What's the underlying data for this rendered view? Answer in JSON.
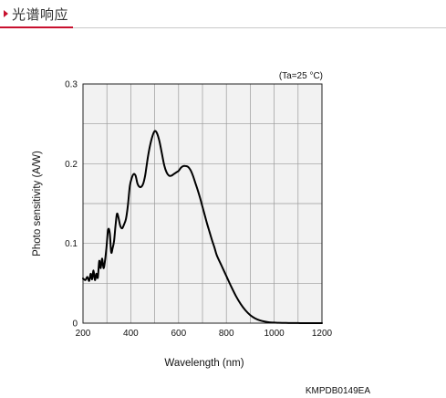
{
  "header": {
    "title": "光谱响应"
  },
  "chart_data": {
    "type": "line",
    "annotation": "(Ta=25 °C)",
    "code": "KMPDB0149EA",
    "xlabel": "Wavelength (nm)",
    "ylabel": "Photo sensitivity (A/W)",
    "xlim": [
      200,
      1200
    ],
    "ylim": [
      0,
      0.3
    ],
    "xticks": [
      200,
      400,
      600,
      800,
      1000,
      1200
    ],
    "yticks": [
      0,
      0.1,
      0.2,
      0.3
    ],
    "xtick_labels": [
      "200",
      "400",
      "600",
      "800",
      "1000",
      "1200"
    ],
    "ytick_labels": [
      "0",
      "0.1",
      "0.2",
      "0.3"
    ],
    "grid": true,
    "series": [
      {
        "color": "#000000",
        "x": [
          200,
          210,
          218,
          226,
          232,
          238,
          244,
          250,
          256,
          262,
          268,
          274,
          280,
          286,
          292,
          298,
          305,
          312,
          318,
          324,
          330,
          336,
          342,
          348,
          356,
          364,
          372,
          380,
          388,
          396,
          404,
          412,
          420,
          428,
          436,
          444,
          452,
          460,
          466,
          472,
          480,
          490,
          500,
          510,
          520,
          530,
          540,
          550,
          560,
          570,
          580,
          590,
          600,
          610,
          620,
          630,
          640,
          650,
          660,
          670,
          680,
          690,
          700,
          710,
          720,
          730,
          740,
          750,
          760,
          780,
          800,
          820,
          840,
          860,
          880,
          900,
          920,
          940,
          960,
          980,
          1000,
          1020,
          1040,
          1060,
          1080,
          1100,
          1120,
          1150,
          1200
        ],
        "y": [
          0.056,
          0.054,
          0.058,
          0.053,
          0.062,
          0.055,
          0.066,
          0.054,
          0.062,
          0.057,
          0.078,
          0.069,
          0.081,
          0.069,
          0.078,
          0.094,
          0.117,
          0.113,
          0.089,
          0.094,
          0.103,
          0.122,
          0.137,
          0.133,
          0.122,
          0.119,
          0.124,
          0.131,
          0.148,
          0.172,
          0.182,
          0.187,
          0.185,
          0.175,
          0.171,
          0.171,
          0.175,
          0.185,
          0.197,
          0.209,
          0.222,
          0.234,
          0.241,
          0.238,
          0.228,
          0.213,
          0.198,
          0.189,
          0.185,
          0.185,
          0.187,
          0.189,
          0.191,
          0.195,
          0.197,
          0.197,
          0.196,
          0.192,
          0.185,
          0.176,
          0.167,
          0.157,
          0.146,
          0.135,
          0.124,
          0.114,
          0.104,
          0.095,
          0.085,
          0.072,
          0.059,
          0.046,
          0.034,
          0.024,
          0.016,
          0.01,
          0.006,
          0.0035,
          0.002,
          0.001,
          0.0007,
          0.0004,
          0.0003,
          0.0002,
          0.0001,
          0.0001,
          0.0,
          0.0,
          0.0
        ]
      }
    ]
  }
}
